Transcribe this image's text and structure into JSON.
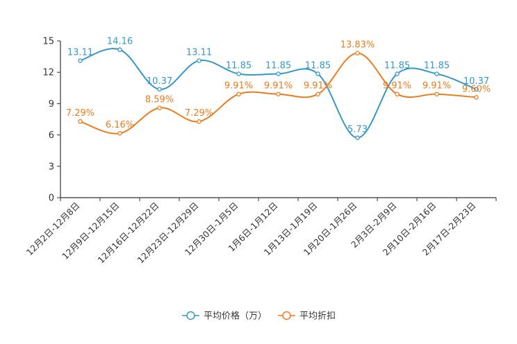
{
  "chart_data": {
    "type": "line",
    "title": "",
    "xlabel": "",
    "ylabel": "",
    "ylim": [
      0,
      15
    ],
    "yticks": [
      "0",
      "3",
      "6",
      "9",
      "12",
      "15"
    ],
    "categories": [
      "12月2日-12月8日",
      "12月9日-12月15日",
      "12月16日-12月22日",
      "12月23日-12月29日",
      "12月30日-1月5日",
      "1月6日-1月12日",
      "1月13日-1月19日",
      "1月20日-1月26日",
      "2月3日-2月9日",
      "2月10日-2月16日",
      "2月17日-2月23日"
    ],
    "legend_position": "bottom",
    "series": [
      {
        "name": "平均价格（万）",
        "color": "#3398c8",
        "values": [
          13.11,
          14.16,
          10.37,
          13.11,
          11.85,
          11.85,
          11.85,
          5.73,
          11.85,
          11.85,
          10.37
        ],
        "labels": [
          "13.11",
          "14.16",
          "10.37",
          "13.11",
          "11.85",
          "11.85",
          "11.85",
          "5.73",
          "11.85",
          "11.85",
          "10.37"
        ]
      },
      {
        "name": "平均折扣",
        "color": "#ef7a1a",
        "values": [
          7.29,
          6.16,
          8.59,
          7.29,
          9.91,
          9.91,
          9.91,
          13.83,
          9.91,
          9.91,
          9.6
        ],
        "labels": [
          "7.29%",
          "6.16%",
          "8.59%",
          "7.29%",
          "9.91%",
          "9.91%",
          "9.91%",
          "13.83%",
          "9.91%",
          "9.91%",
          "9.60%"
        ]
      }
    ]
  }
}
